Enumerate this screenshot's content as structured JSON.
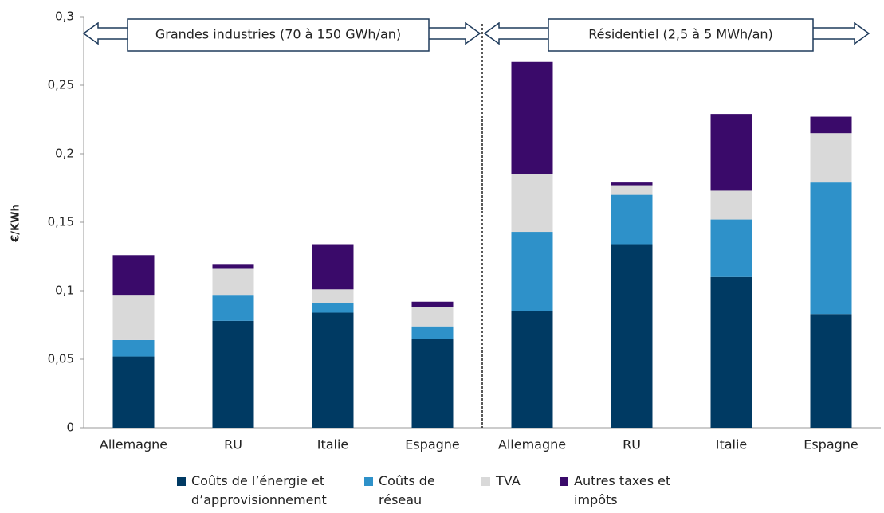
{
  "chart_data": {
    "type": "bar",
    "stacked": true,
    "y_label": "€/KWh",
    "annotations": [
      "Grandes industries (70 à 150 GWh/an)",
      "Résidentiel (2,5 à 5 MWh/an)"
    ],
    "categories": [
      "Allemagne",
      "RU",
      "Italie",
      "Espagne",
      "Allemagne",
      "RU",
      "Italie",
      "Espagne"
    ],
    "series": [
      {
        "name": "Coûts de l’énergie et d’approvisionnement",
        "color": "#003a63",
        "values": [
          0.052,
          0.078,
          0.084,
          0.065,
          0.085,
          0.134,
          0.11,
          0.083
        ]
      },
      {
        "name": "Coûts de réseau",
        "color": "#2e91c9",
        "values": [
          0.012,
          0.019,
          0.007,
          0.009,
          0.058,
          0.036,
          0.042,
          0.096
        ]
      },
      {
        "name": "TVA",
        "color": "#d9d9d9",
        "values": [
          0.033,
          0.019,
          0.01,
          0.014,
          0.042,
          0.007,
          0.021,
          0.036
        ]
      },
      {
        "name": "Autres taxes et impôts",
        "color": "#3a0a6a",
        "values": [
          0.029,
          0.003,
          0.033,
          0.004,
          0.082,
          0.002,
          0.056,
          0.012
        ]
      }
    ],
    "ylim": [
      0,
      0.3
    ],
    "yticks": [
      0,
      {
        "value": 0.05,
        "label": "0,05"
      },
      {
        "value": 0.1,
        "label": "0,1"
      },
      {
        "value": 0.15,
        "label": "0,15"
      },
      {
        "value": 0.2,
        "label": "0,2"
      },
      {
        "value": 0.25,
        "label": "0,25"
      },
      {
        "value": 0.3,
        "label": "0,3"
      }
    ],
    "legend": "bottom"
  }
}
